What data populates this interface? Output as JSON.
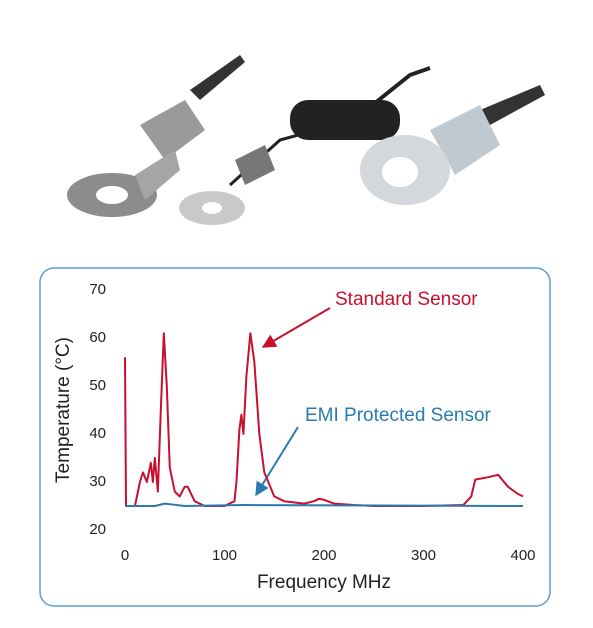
{
  "chart_data": {
    "type": "line",
    "xlabel": "Frequency MHz",
    "ylabel": "Temperature (°C)",
    "annotations": [
      "Standard Sensor",
      "EMI Protected Sensor"
    ],
    "xlim": [
      0,
      400
    ],
    "xticks": [
      0,
      100,
      200,
      300,
      400
    ],
    "ylim": [
      20,
      70
    ],
    "yticks": [
      20,
      30,
      40,
      50,
      60,
      70
    ],
    "grid": false,
    "series": [
      {
        "name": "Standard Sensor",
        "color": "#c8102e",
        "x": [
          0,
          1,
          10,
          15,
          18,
          22,
          26,
          28,
          30,
          33,
          36,
          39,
          42,
          45,
          50,
          55,
          60,
          63,
          70,
          80,
          100,
          110,
          112,
          115,
          117,
          119,
          122,
          126,
          130,
          135,
          140,
          150,
          160,
          180,
          190,
          195,
          200,
          210,
          230,
          250,
          300,
          340,
          348,
          352,
          365,
          375,
          385,
          395,
          400
        ],
        "values": [
          56,
          25,
          25,
          30,
          32,
          30,
          34,
          30,
          35,
          28,
          45,
          61,
          50,
          33,
          28,
          27,
          29,
          29,
          26,
          25,
          25,
          26,
          30,
          41,
          44,
          40,
          52,
          61,
          55,
          40,
          32,
          27,
          26,
          25.5,
          26,
          26.5,
          26.3,
          25.5,
          25.2,
          25,
          25,
          25.2,
          27,
          30.5,
          31,
          31.5,
          29,
          27.5,
          27
        ]
      },
      {
        "name": "EMI Protected Sensor",
        "color": "#2a7ab0",
        "x": [
          0,
          30,
          40,
          48,
          60,
          120,
          400
        ],
        "values": [
          25,
          25,
          25.5,
          25.3,
          25,
          25.2,
          25
        ]
      }
    ]
  }
}
